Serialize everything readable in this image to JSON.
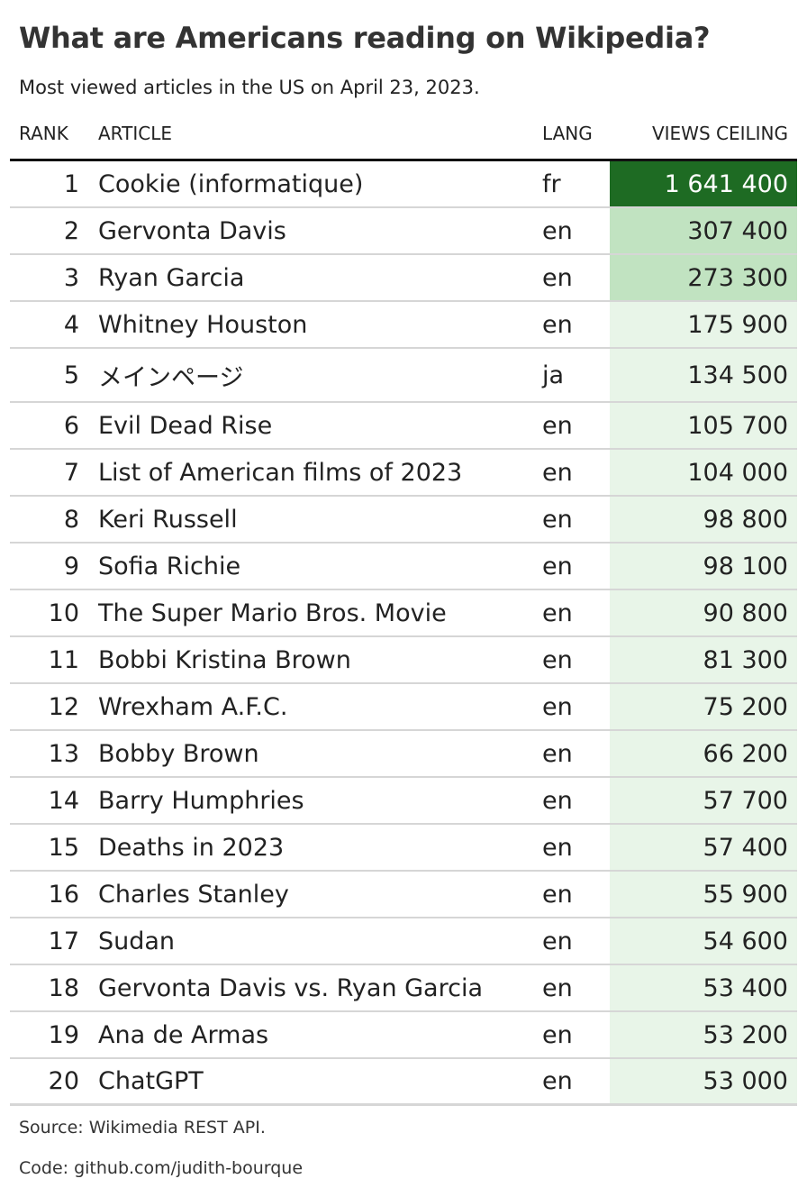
{
  "header": {
    "title": "What are Americans reading on Wikipedia?",
    "subtitle": "Most viewed articles in the US on April 23, 2023."
  },
  "footer": {
    "source": "Source: Wikimedia REST API.",
    "code": "Code: github.com/judith-bourque"
  },
  "colors": {
    "top_cell": "#1e6b23",
    "high_cell": "#c1e3c1",
    "low_cell": "#e8f5e8"
  },
  "chart_data": {
    "type": "table",
    "title": "What are Americans reading on Wikipedia?",
    "subtitle": "Most viewed articles in the US on April 23, 2023.",
    "columns": [
      "RANK",
      "ARTICLE",
      "LANG",
      "VIEWS CEILING"
    ],
    "rows": [
      {
        "rank": 1,
        "article": "Cookie (informatique)",
        "lang": "fr",
        "views": "1 641 400",
        "value": 1641400
      },
      {
        "rank": 2,
        "article": "Gervonta Davis",
        "lang": "en",
        "views": "307 400",
        "value": 307400
      },
      {
        "rank": 3,
        "article": "Ryan Garcia",
        "lang": "en",
        "views": "273 300",
        "value": 273300
      },
      {
        "rank": 4,
        "article": "Whitney Houston",
        "lang": "en",
        "views": "175 900",
        "value": 175900
      },
      {
        "rank": 5,
        "article": "メインページ",
        "lang": "ja",
        "views": "134 500",
        "value": 134500
      },
      {
        "rank": 6,
        "article": "Evil Dead Rise",
        "lang": "en",
        "views": "105 700",
        "value": 105700
      },
      {
        "rank": 7,
        "article": "List of American films of 2023",
        "lang": "en",
        "views": "104 000",
        "value": 104000
      },
      {
        "rank": 8,
        "article": "Keri Russell",
        "lang": "en",
        "views": "98 800",
        "value": 98800
      },
      {
        "rank": 9,
        "article": "Sofia Richie",
        "lang": "en",
        "views": "98 100",
        "value": 98100
      },
      {
        "rank": 10,
        "article": "The Super Mario Bros. Movie",
        "lang": "en",
        "views": "90 800",
        "value": 90800
      },
      {
        "rank": 11,
        "article": "Bobbi Kristina Brown",
        "lang": "en",
        "views": "81 300",
        "value": 81300
      },
      {
        "rank": 12,
        "article": "Wrexham A.F.C.",
        "lang": "en",
        "views": "75 200",
        "value": 75200
      },
      {
        "rank": 13,
        "article": "Bobby Brown",
        "lang": "en",
        "views": "66 200",
        "value": 66200
      },
      {
        "rank": 14,
        "article": "Barry Humphries",
        "lang": "en",
        "views": "57 700",
        "value": 57700
      },
      {
        "rank": 15,
        "article": "Deaths in 2023",
        "lang": "en",
        "views": "57 400",
        "value": 57400
      },
      {
        "rank": 16,
        "article": "Charles Stanley",
        "lang": "en",
        "views": "55 900",
        "value": 55900
      },
      {
        "rank": 17,
        "article": "Sudan",
        "lang": "en",
        "views": "54 600",
        "value": 54600
      },
      {
        "rank": 18,
        "article": "Gervonta Davis vs. Ryan Garcia",
        "lang": "en",
        "views": "53 400",
        "value": 53400
      },
      {
        "rank": 19,
        "article": "Ana de Armas",
        "lang": "en",
        "views": "53 200",
        "value": 53200
      },
      {
        "rank": 20,
        "article": "ChatGPT",
        "lang": "en",
        "views": "53 000",
        "value": 53000
      }
    ]
  }
}
